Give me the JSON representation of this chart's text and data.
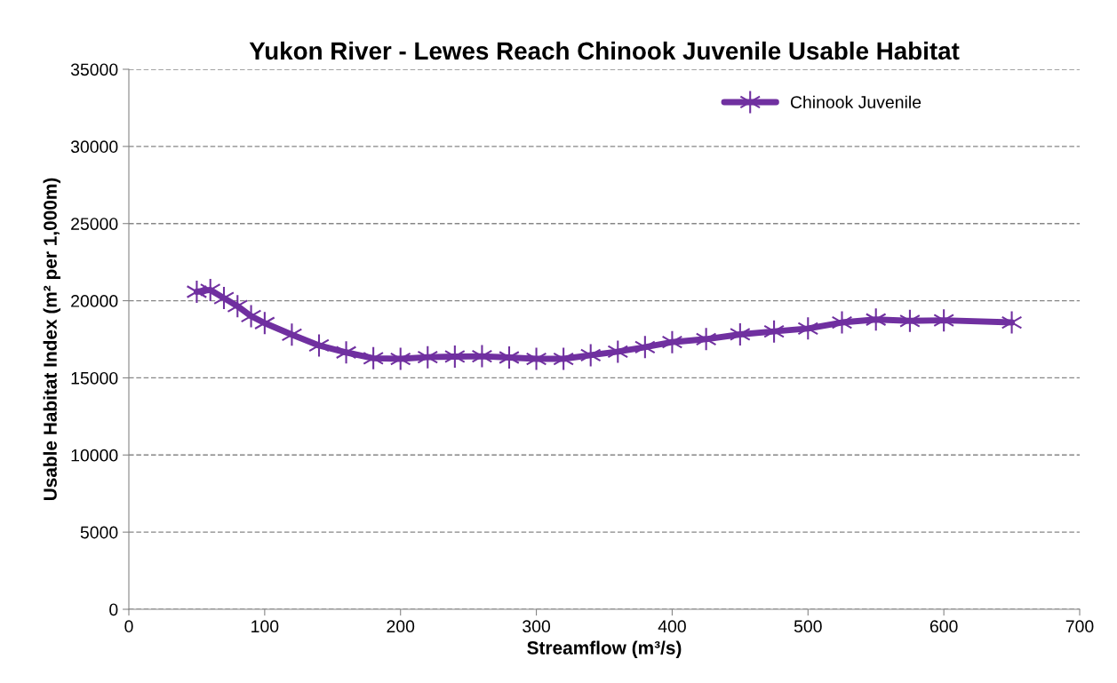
{
  "chart_data": {
    "type": "line",
    "title": "Yukon River - Lewes Reach Chinook Juvenile Usable Habitat",
    "xlabel": "Streamflow (m³/s)",
    "ylabel": "Usable Habitat Index (m² per 1,000m)",
    "x": [
      50,
      60,
      70,
      80,
      90,
      100,
      120,
      140,
      160,
      180,
      200,
      220,
      240,
      260,
      280,
      300,
      320,
      340,
      360,
      380,
      400,
      425,
      450,
      475,
      500,
      525,
      550,
      575,
      600,
      650
    ],
    "series": [
      {
        "name": "Chinook Juvenile",
        "color": "#7030a0",
        "values": [
          20580,
          20700,
          20170,
          19650,
          19000,
          18550,
          17800,
          17100,
          16650,
          16270,
          16230,
          16340,
          16380,
          16400,
          16320,
          16230,
          16230,
          16470,
          16700,
          16990,
          17320,
          17510,
          17820,
          18010,
          18200,
          18590,
          18780,
          18690,
          18730,
          18590
        ]
      }
    ],
    "xlim": [
      0,
      700
    ],
    "xticks": [
      0,
      100,
      200,
      300,
      400,
      500,
      600,
      700
    ],
    "ylim": [
      0,
      35000
    ],
    "yticks": [
      0,
      5000,
      10000,
      15000,
      20000,
      25000,
      30000,
      35000
    ],
    "grid": "y",
    "legend": "top right",
    "marker": "cross",
    "line_style": "solid"
  }
}
